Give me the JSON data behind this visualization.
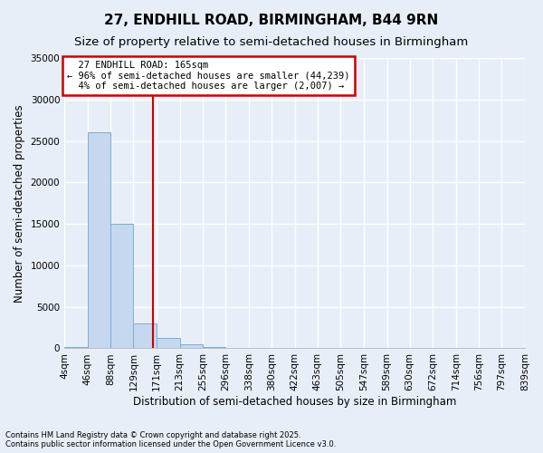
{
  "title": "27, ENDHILL ROAD, BIRMINGHAM, B44 9RN",
  "subtitle": "Size of property relative to semi-detached houses in Birmingham",
  "xlabel": "Distribution of semi-detached houses by size in Birmingham",
  "ylabel": "Number of semi-detached properties",
  "footnote1": "Contains HM Land Registry data © Crown copyright and database right 2025.",
  "footnote2": "Contains public sector information licensed under the Open Government Licence v3.0.",
  "property_size": 165,
  "property_label": "27 ENDHILL ROAD: 165sqm",
  "smaller_pct": 96,
  "smaller_count": 44239,
  "larger_pct": 4,
  "larger_count": 2007,
  "bin_edges": [
    4,
    46,
    88,
    129,
    171,
    213,
    255,
    296,
    338,
    380,
    422,
    463,
    505,
    547,
    589,
    630,
    672,
    714,
    756,
    797,
    839
  ],
  "bin_counts": [
    200,
    26000,
    15000,
    3000,
    1200,
    500,
    200,
    100,
    60,
    40,
    25,
    15,
    10,
    8,
    6,
    5,
    4,
    3,
    2,
    2
  ],
  "bar_facecolor": "#c5d8ef",
  "bar_edgecolor": "#7aadd4",
  "vline_color": "#cc0000",
  "annotation_box_color": "#cc0000",
  "background_color": "#e8eef8",
  "grid_color": "#d0d8e8",
  "ylim": [
    0,
    35000
  ],
  "yticks": [
    0,
    5000,
    10000,
    15000,
    20000,
    25000,
    30000,
    35000
  ],
  "title_fontsize": 11,
  "subtitle_fontsize": 9.5,
  "axis_label_fontsize": 8.5,
  "tick_fontsize": 7.5,
  "annotation_fontsize": 7.5
}
